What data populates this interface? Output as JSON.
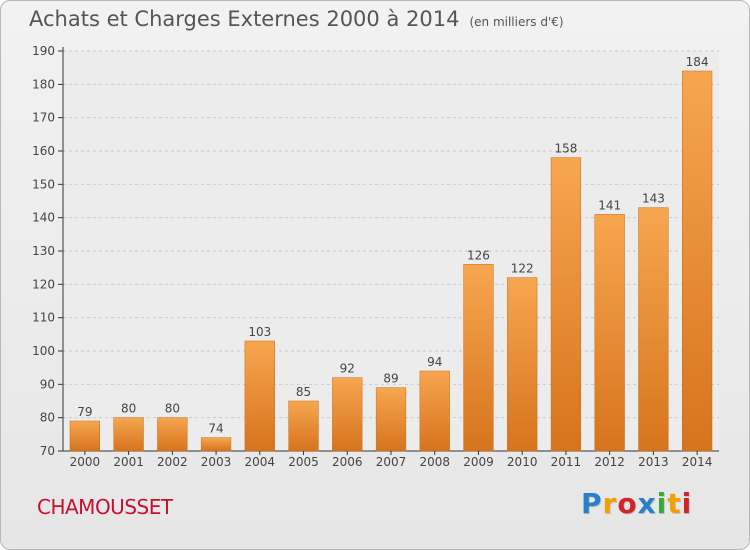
{
  "header": {
    "title": "Achats et Charges Externes 2000 à 2014",
    "subtitle": "(en milliers d'€)"
  },
  "footer": {
    "commune": "CHAMOUSSET",
    "brand_letters": [
      "P",
      "r",
      "o",
      "x",
      "i",
      "t",
      "i"
    ],
    "brand_colors": [
      "#2a7fc9",
      "#f0a000",
      "#d2232a",
      "#2a7fc9",
      "#39a935",
      "#f0a000",
      "#d2232a"
    ]
  },
  "colors": {
    "bar_top": "#f7a650",
    "bar_bottom": "#d6741c",
    "bar_edge": "#c96a15",
    "axis": "#333333",
    "grid": "#c9c9c9",
    "label": "#444444"
  },
  "chart_data": {
    "type": "bar",
    "title": "Achats et Charges Externes 2000 à 2014",
    "subtitle": "(en milliers d'€)",
    "xlabel": "",
    "ylabel": "",
    "categories": [
      "2000",
      "2001",
      "2002",
      "2003",
      "2004",
      "2005",
      "2006",
      "2007",
      "2008",
      "2009",
      "2010",
      "2011",
      "2012",
      "2013",
      "2014"
    ],
    "values": [
      79,
      80,
      80,
      74,
      103,
      85,
      92,
      89,
      94,
      126,
      122,
      158,
      141,
      143,
      184
    ],
    "ylim": [
      70,
      190
    ],
    "yticks": [
      70,
      80,
      90,
      100,
      110,
      120,
      130,
      140,
      150,
      160,
      170,
      180,
      190
    ],
    "grid": true
  }
}
